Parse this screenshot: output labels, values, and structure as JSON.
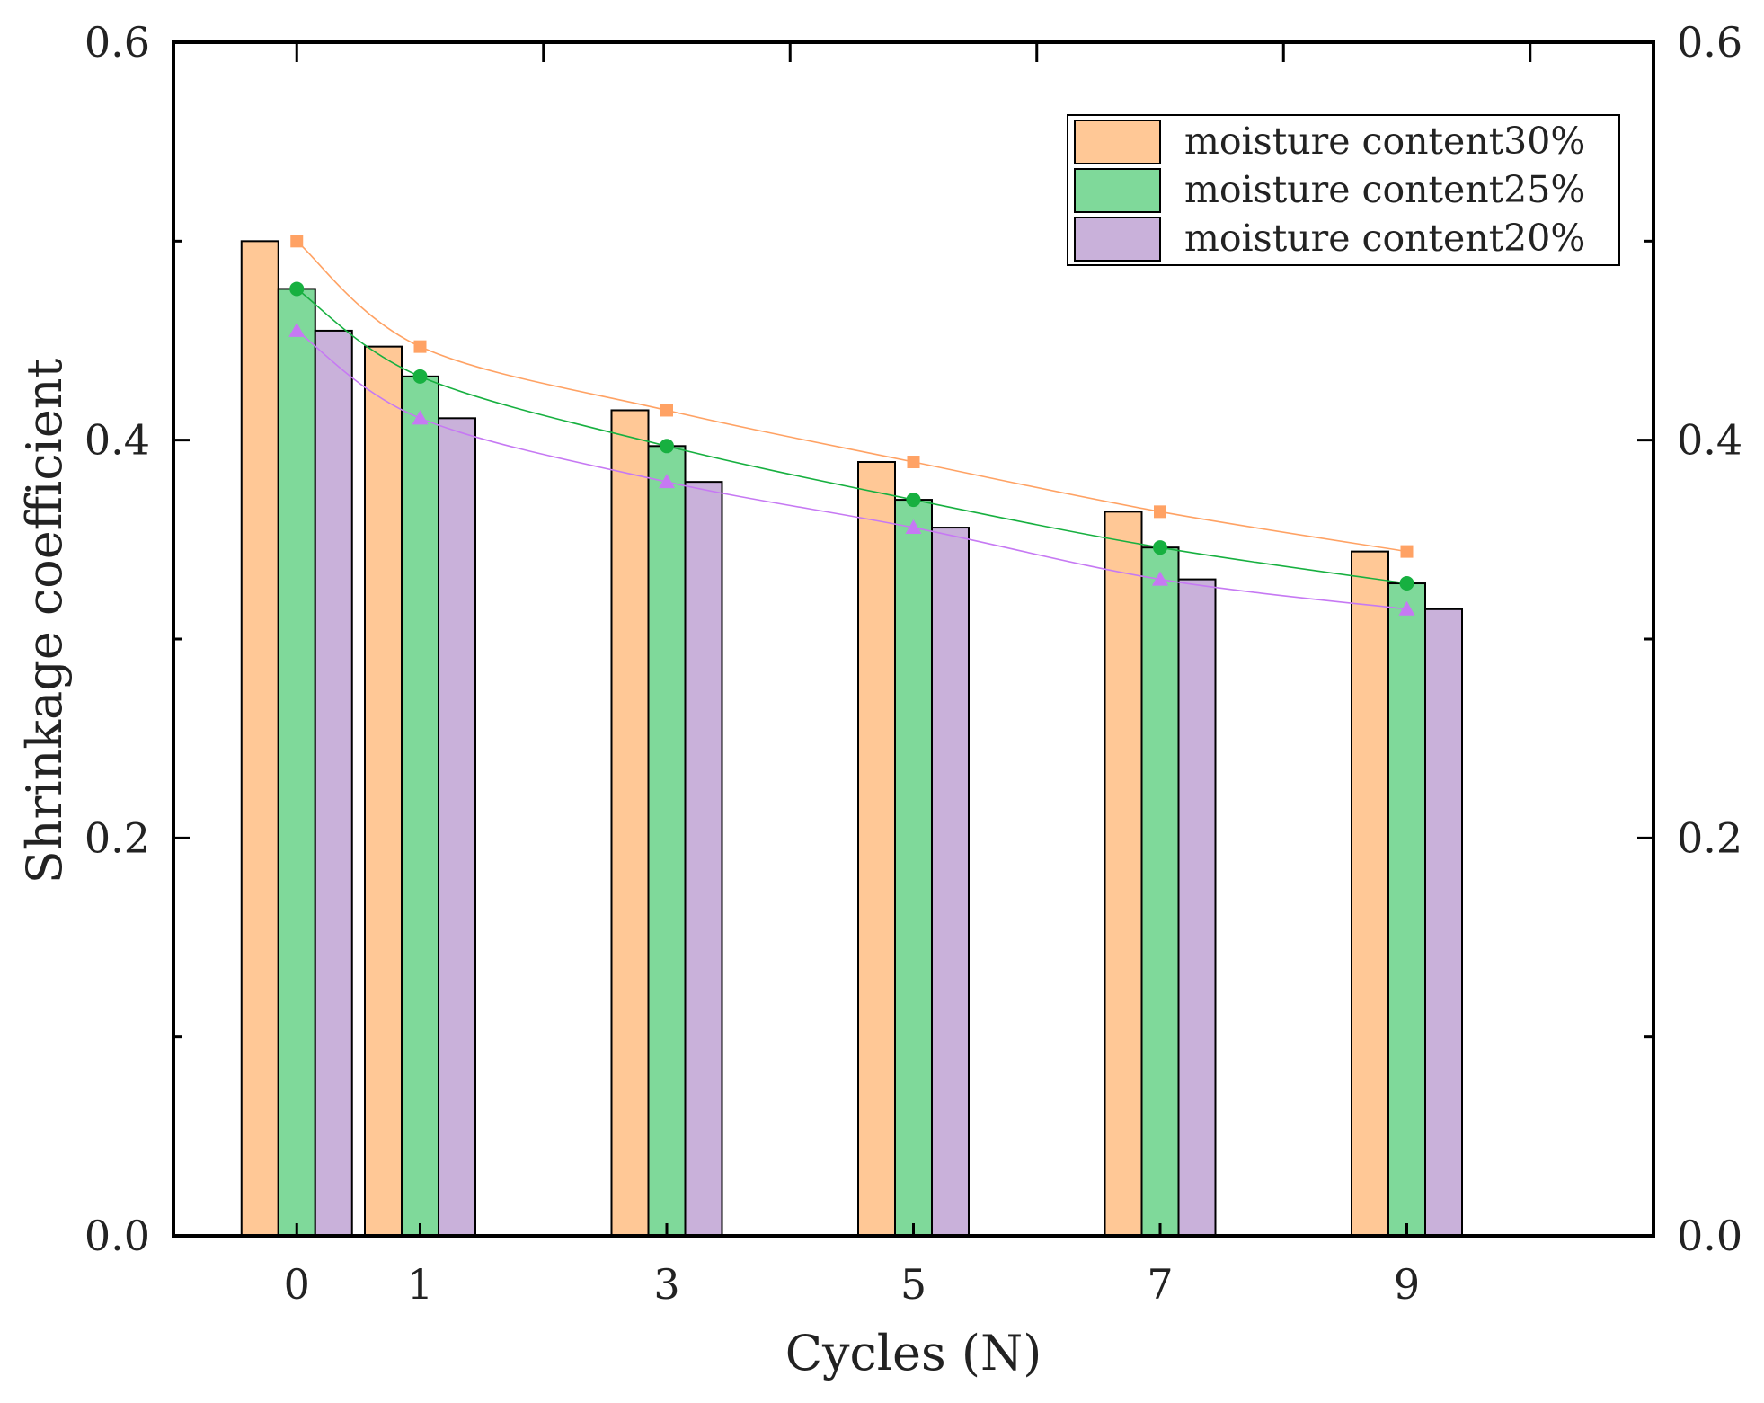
{
  "chart_data": {
    "type": "bar",
    "xlabel": "Cycles (N)",
    "ylabel": "Shrinkage coefficient",
    "categories": [
      "0",
      "1",
      "3",
      "5",
      "7",
      "9"
    ],
    "x": [
      0,
      1,
      3,
      5,
      7,
      9
    ],
    "xlim": [
      -1,
      11
    ],
    "ylim": [
      0.0,
      0.6
    ],
    "y_ticks": [
      "0.0",
      "0.2",
      "0.4",
      "0.6"
    ],
    "y_tick_values": [
      0.0,
      0.2,
      0.4,
      0.6
    ],
    "y_minor_tick_values": [
      0.1,
      0.3,
      0.5
    ],
    "right_axis": true,
    "grid": false,
    "legend_position": "top-right",
    "series": [
      {
        "name": "moisture content30%",
        "values": [
          0.5,
          0.447,
          0.415,
          0.389,
          0.364,
          0.344
        ],
        "fill": "#ffc896",
        "marker": "square",
        "marker_color": "#ffa264"
      },
      {
        "name": "moisture content25%",
        "values": [
          0.476,
          0.432,
          0.397,
          0.37,
          0.346,
          0.328
        ],
        "fill": "#7fd99a",
        "marker": "circle",
        "marker_color": "#17b040"
      },
      {
        "name": "moisture content20%",
        "values": [
          0.455,
          0.411,
          0.379,
          0.356,
          0.33,
          0.315
        ],
        "fill": "#c9b1da",
        "marker": "triangle",
        "marker_color": "#c679f3"
      }
    ]
  }
}
